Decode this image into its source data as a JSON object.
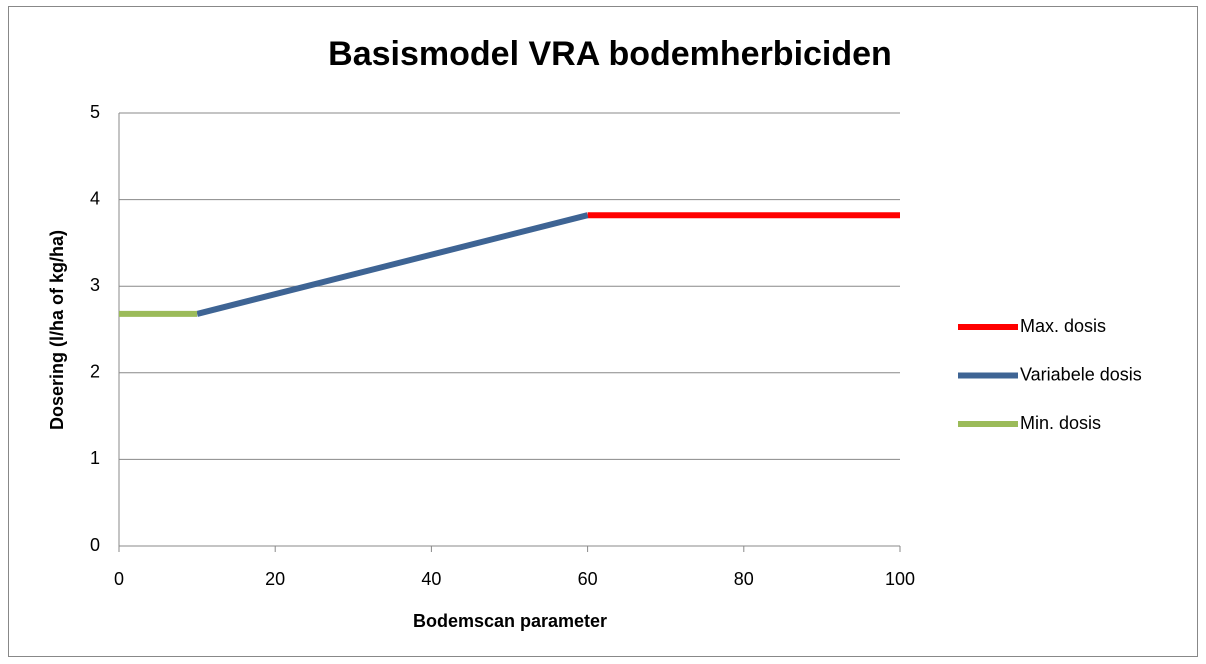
{
  "chart_data": {
    "type": "line",
    "title": "Basismodel VRA bodemherbiciden",
    "x_label": "Bodemscan parameter",
    "y_label": "Dosering (l/ha of kg/ha)",
    "series": [
      {
        "name": "Max. dosis",
        "color": "#ff0000",
        "x": [
          60,
          100
        ],
        "values": [
          3.82,
          3.82
        ]
      },
      {
        "name": "Variabele dosis",
        "color": "#3e6494",
        "x": [
          10,
          60
        ],
        "values": [
          2.68,
          3.82
        ]
      },
      {
        "name": "Min. dosis",
        "color": "#9bbb59",
        "x": [
          0,
          10
        ],
        "values": [
          2.68,
          2.68
        ]
      }
    ],
    "xlim": [
      0,
      100
    ],
    "xticks": [
      0,
      20,
      40,
      60,
      80,
      100
    ],
    "ylim": [
      0,
      5
    ],
    "yticks": [
      0,
      1,
      2,
      3,
      4,
      5
    ],
    "grid": true,
    "legend": "right"
  }
}
